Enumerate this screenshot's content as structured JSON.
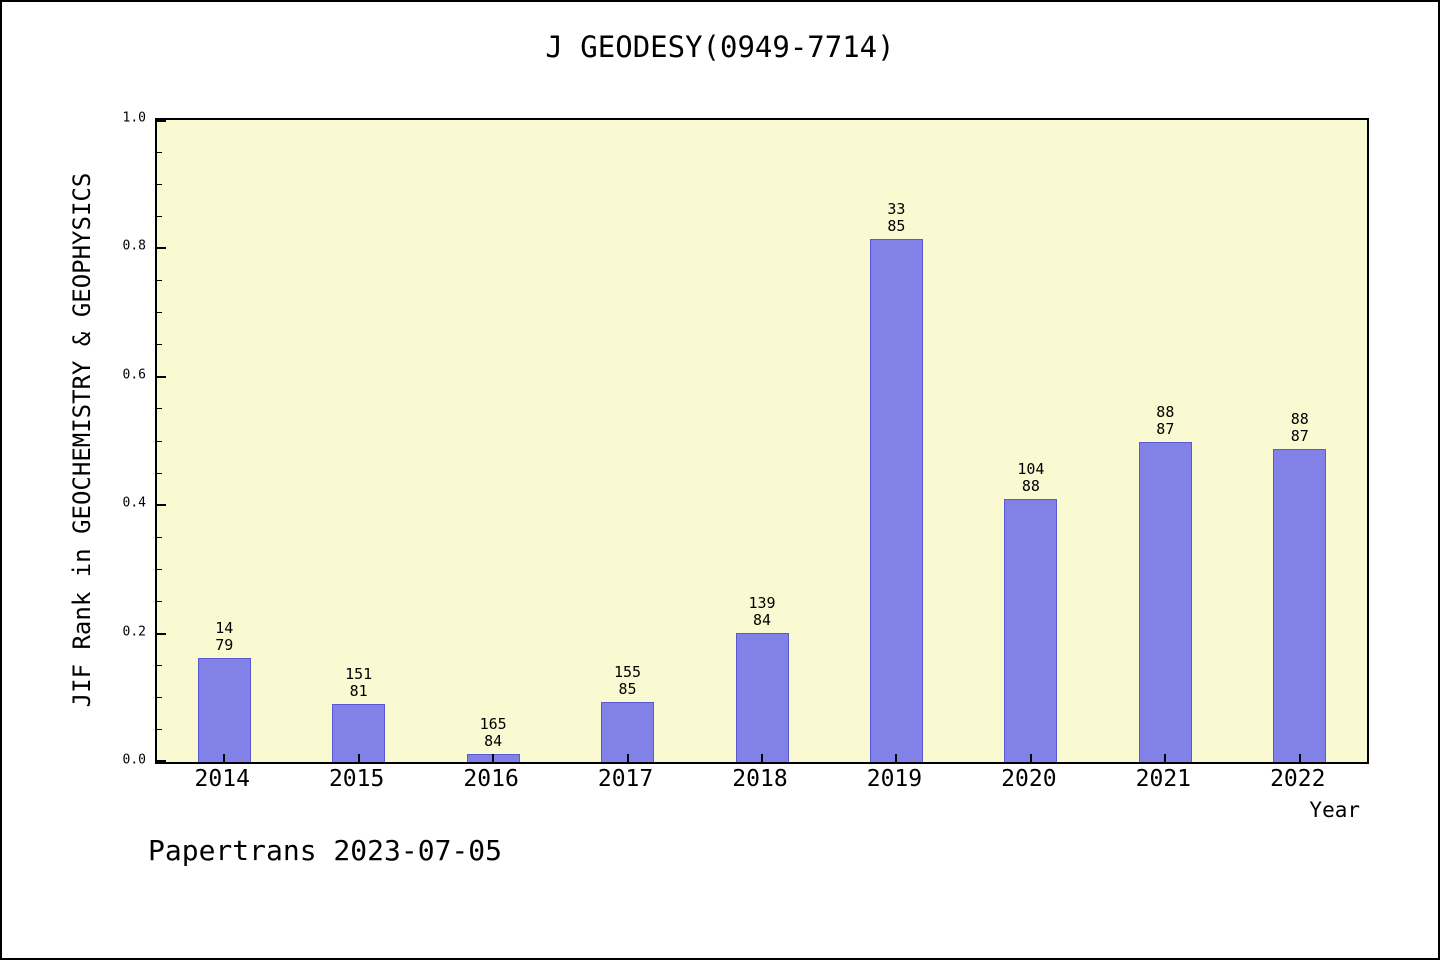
{
  "title": "J GEODESY(0949-7714)",
  "footer": "Papertrans 2023-07-05",
  "chart_data": {
    "type": "bar",
    "title": "J GEODESY(0949-7714)",
    "xlabel": "Year",
    "ylabel": "JIF Rank in GEOCHEMISTRY & GEOPHYSICS",
    "ylim": [
      0.0,
      1.0
    ],
    "grid": false,
    "legend": "none",
    "plot_bg_color": "#fafad2",
    "bar_color": "#8181e8",
    "categories": [
      "2014",
      "2015",
      "2016",
      "2017",
      "2018",
      "2019",
      "2020",
      "2021",
      "2022"
    ],
    "values": [
      0.162,
      0.09,
      0.013,
      0.093,
      0.201,
      0.815,
      0.41,
      0.498,
      0.487
    ],
    "bar_labels": [
      [
        "14",
        "79"
      ],
      [
        "151",
        "81"
      ],
      [
        "165",
        "84"
      ],
      [
        "155",
        "85"
      ],
      [
        "139",
        "84"
      ],
      [
        "33",
        "85"
      ],
      [
        "104",
        "88"
      ],
      [
        "88",
        "87"
      ],
      [
        "88",
        "87"
      ]
    ],
    "yticks": [
      0.0,
      0.2,
      0.4,
      0.6,
      0.8,
      1.0
    ],
    "ytick_labels": [
      "0.0",
      "0.2",
      "0.4",
      "0.6",
      "0.8",
      "1.0"
    ],
    "ytick_minor_step": 0.05
  }
}
